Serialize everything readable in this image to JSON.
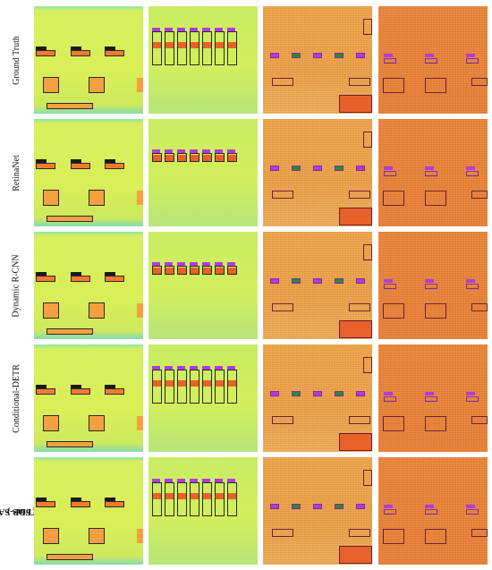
{
  "rows": [
    {
      "label": "Ground Truth"
    },
    {
      "label": "RetinaNet"
    },
    {
      "label": "Dynamic R-CNN"
    },
    {
      "label": "Conditional-DETR"
    },
    {
      "label": "TFDP-SANet",
      "sublabel": "( ours )"
    }
  ],
  "colors": {
    "background": "#ffffff",
    "spectrogram_lowpower": "#d9ef58",
    "spectrogram_noise_orange": "#eea34a",
    "spectrogram_noise_red": "#ec843a",
    "signal": "#f47a2e",
    "box_black": "#2a2a2a",
    "box_purple": "#7d2ca8",
    "tag_green": "#2d8a2d"
  }
}
